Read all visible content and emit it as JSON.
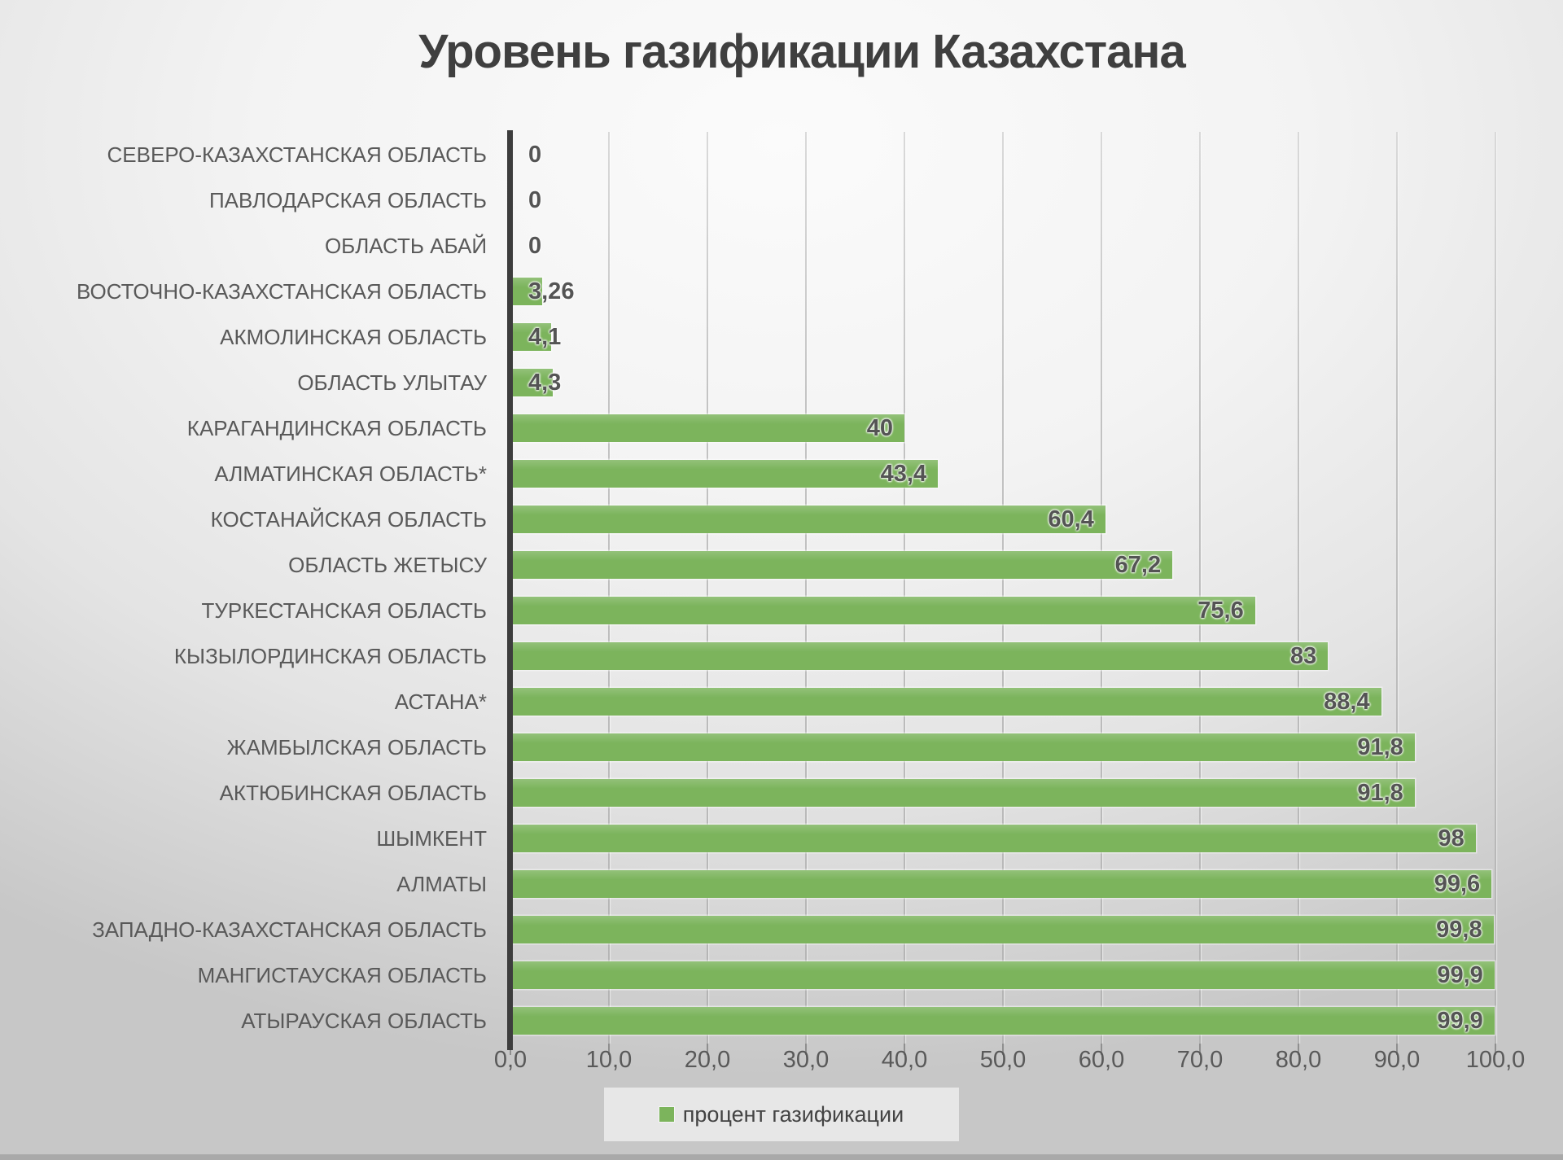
{
  "title": "Уровень газификации Казахстана",
  "legend": {
    "label": "процент газификации"
  },
  "colors": {
    "bar": "#7cb45c",
    "title_text": "#3f3f3f",
    "category_text": "#595959",
    "value_text": "#545454",
    "axis_text": "#595959",
    "gridline": "#c3c3c3",
    "axis_line": "#3d3d3d",
    "legend_bg": "#e7e7e7"
  },
  "chart_data": {
    "type": "bar",
    "orientation": "horizontal",
    "title": "Уровень газификации Казахстана",
    "categories": [
      "СЕВЕРО-КАЗАХСТАНСКАЯ ОБЛАСТЬ",
      "ПАВЛОДАРСКАЯ ОБЛАСТЬ",
      "ОБЛАСТЬ АБАЙ",
      "ВОСТОЧНО-КАЗАХСТАНСКАЯ ОБЛАСТЬ",
      "АКМОЛИНСКАЯ ОБЛАСТЬ",
      "ОБЛАСТЬ УЛЫТАУ",
      "КАРАГАНДИНСКАЯ ОБЛАСТЬ",
      "АЛМАТИНСКАЯ ОБЛАСТЬ*",
      "КОСТАНАЙСКАЯ ОБЛАСТЬ",
      "ОБЛАСТЬ ЖЕТЫСУ",
      "ТУРКЕСТАНСКАЯ ОБЛАСТЬ",
      "КЫЗЫЛОРДИНСКАЯ ОБЛАСТЬ",
      "АСТАНА*",
      "ЖАМБЫЛСКАЯ ОБЛАСТЬ",
      "АКТЮБИНСКАЯ ОБЛАСТЬ",
      "ШЫМКЕНТ",
      "АЛМАТЫ",
      "ЗАПАДНО-КАЗАХСТАНСКАЯ ОБЛАСТЬ",
      "МАНГИСТАУСКАЯ ОБЛАСТЬ",
      "АТЫРАУСКАЯ ОБЛАСТЬ"
    ],
    "values": [
      0,
      0,
      0,
      3.26,
      4.1,
      4.3,
      40,
      43.4,
      60.4,
      67.2,
      75.6,
      83,
      88.4,
      91.8,
      91.8,
      98,
      99.6,
      99.8,
      99.9,
      99.9
    ],
    "value_labels": [
      "0",
      "0",
      "0",
      "3,26",
      "4,1",
      "4,3",
      "40",
      "43,4",
      "60,4",
      "67,2",
      "75,6",
      "83",
      "88,4",
      "91,8",
      "91,8",
      "98",
      "99,6",
      "99,8",
      "99,9",
      "99,9"
    ],
    "x_ticks": [
      "0,0",
      "10,0",
      "20,0",
      "30,0",
      "40,0",
      "50,0",
      "60,0",
      "70,0",
      "80,0",
      "90,0",
      "100,0"
    ],
    "xlim": [
      0,
      100
    ],
    "grid": true,
    "series_name": "процент газификации",
    "legend_position": "bottom"
  }
}
